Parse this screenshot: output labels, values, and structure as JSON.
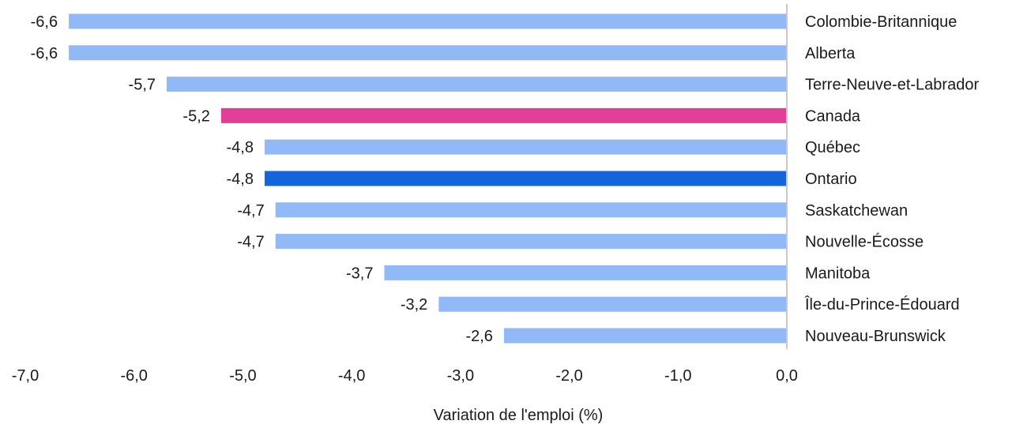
{
  "chart_data": {
    "type": "bar",
    "orientation": "horizontal",
    "categories": [
      "Colombie-Britannique",
      "Alberta",
      "Terre-Neuve-et-Labrador",
      "Canada",
      "Québec",
      "Ontario",
      "Saskatchewan",
      "Nouvelle-Écosse",
      "Manitoba",
      "Île-du-Prince-Édouard",
      "Nouveau-Brunswick"
    ],
    "values": [
      -6.6,
      -6.6,
      -5.7,
      -5.2,
      -4.8,
      -4.8,
      -4.7,
      -4.7,
      -3.7,
      -3.2,
      -2.6
    ],
    "value_labels": [
      "-6,6",
      "-6,6",
      "-5,7",
      "-5,2",
      "-4,8",
      "-4,8",
      "-4,7",
      "-4,7",
      "-3,7",
      "-3,2",
      "-2,6"
    ],
    "colors": [
      "#91b9f5",
      "#91b9f5",
      "#91b9f5",
      "#e23f96",
      "#91b9f5",
      "#1464dc",
      "#91b9f5",
      "#91b9f5",
      "#91b9f5",
      "#91b9f5",
      "#91b9f5"
    ],
    "xlim": [
      -7.0,
      0.0
    ],
    "xticks": [
      -7.0,
      -6.0,
      -5.0,
      -4.0,
      -3.0,
      -2.0,
      -1.0,
      0.0
    ],
    "xtick_labels": [
      "-7,0",
      "-6,0",
      "-5,0",
      "-4,0",
      "-3,0",
      "-2,0",
      "-1,0",
      "0,0"
    ],
    "xlabel": "Variation de l'emploi (%)",
    "ylabel": "",
    "title": "",
    "grid": false,
    "legend": "none"
  }
}
